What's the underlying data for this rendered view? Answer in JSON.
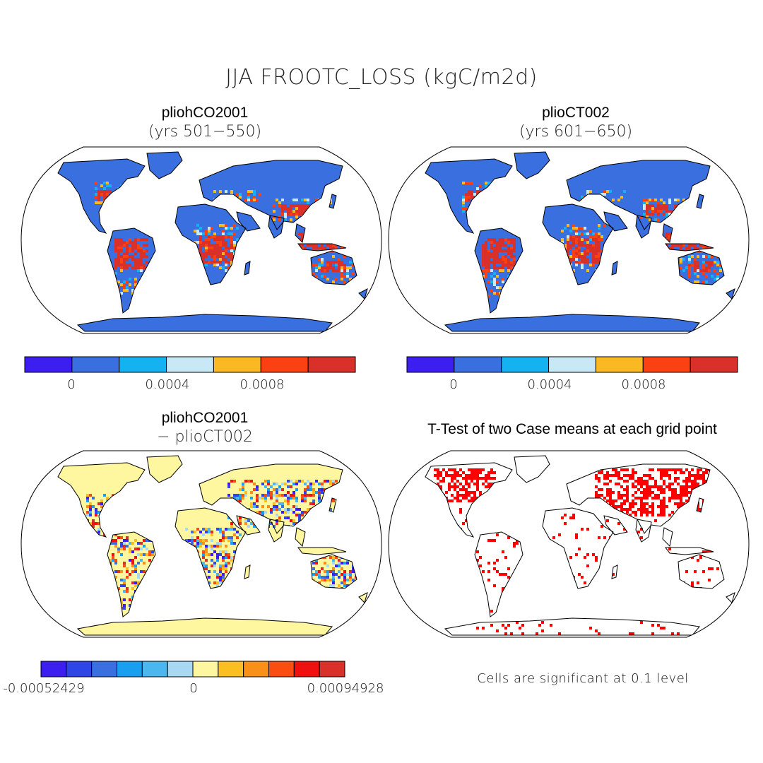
{
  "title": "JJA FROOTC_LOSS (kgC/m2d)",
  "panels": [
    {
      "name": "pliohCO2001",
      "subtitle": "(yrs 501−550)"
    },
    {
      "name": "plioCT002",
      "subtitle": "(yrs 601−650)"
    },
    {
      "name": "pliohCO2001",
      "subtitle": "− plioCT002"
    },
    {
      "name": "T-Test of two Case means at each grid point",
      "subtitle": ""
    }
  ],
  "colorbar_abs": {
    "colors": [
      "#3d1ef0",
      "#3a6fe0",
      "#14b2f0",
      "#c8e8f6",
      "#fab822",
      "#fb4012",
      "#d9302a"
    ],
    "labels": [
      "0",
      "0.0004",
      "0.0008"
    ]
  },
  "colorbar_diff": {
    "colors": [
      "#3d1ef0",
      "#2f45e6",
      "#3a6fe0",
      "#1a9ef0",
      "#4cb6ee",
      "#a8d8f2",
      "#fff7a0",
      "#fbbf22",
      "#f9901a",
      "#fb4c12",
      "#f01010",
      "#d9302a"
    ],
    "labels": [
      "-0.00052429",
      "0",
      "0.00094928"
    ]
  },
  "note": "Cells are significant at 0.1 level",
  "map_colors": {
    "land_base_abs": "#3a6fe0",
    "land_base_diff": "#fff7a0",
    "signif": "#ff0000",
    "hot": "#d9302a",
    "warm": "#fb4012",
    "orange": "#fab822",
    "cyan": "#14b2f0"
  }
}
